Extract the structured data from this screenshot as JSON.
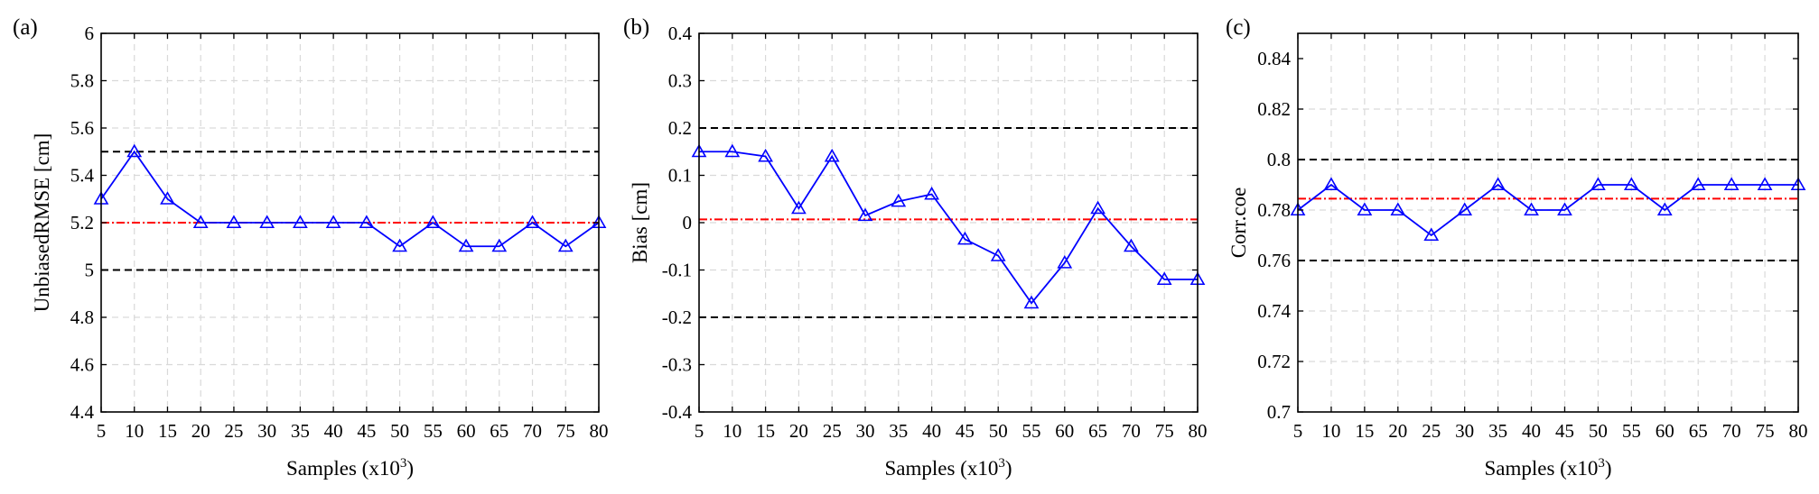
{
  "figure": {
    "layout": "three panels side by side"
  },
  "chart_data": [
    {
      "type": "line",
      "panel_label": "(a)",
      "xlabel": "Samples (x10",
      "xlabel_sup": "3",
      "xlabel_close": ")",
      "ylabel": "UnbiasedRMSE [cm]",
      "xlim": [
        5,
        80
      ],
      "ylim": [
        4.4,
        6
      ],
      "xticks": [
        5,
        10,
        15,
        20,
        25,
        30,
        35,
        40,
        45,
        50,
        55,
        60,
        65,
        70,
        75,
        80
      ],
      "yticks": [
        4.4,
        4.6,
        4.8,
        5,
        5.2,
        5.4,
        5.6,
        5.8,
        6
      ],
      "ytick_labels": [
        "4.4",
        "4.6",
        "4.8",
        "5",
        "5.2",
        "5.4",
        "5.6",
        "5.8",
        "6"
      ],
      "grid": true,
      "series": [
        {
          "x": [
            5,
            10,
            15,
            20,
            25,
            30,
            35,
            40,
            45,
            50,
            55,
            60,
            65,
            70,
            75,
            80
          ],
          "values": [
            5.3,
            5.5,
            5.3,
            5.2,
            5.2,
            5.2,
            5.2,
            5.2,
            5.2,
            5.1,
            5.2,
            5.1,
            5.1,
            5.2,
            5.1,
            5.2
          ],
          "marker": "triangle",
          "color": "#0000ff"
        }
      ],
      "reference_lines": [
        {
          "y": 5.5,
          "style": "dashed",
          "color": "#000000"
        },
        {
          "y": 5.0,
          "style": "dashed",
          "color": "#000000"
        },
        {
          "y": 5.2,
          "style": "dashdot",
          "color": "#ff0000"
        }
      ]
    },
    {
      "type": "line",
      "panel_label": "(b)",
      "xlabel": "Samples (x10",
      "xlabel_sup": "3",
      "xlabel_close": ")",
      "ylabel": "Bias [cm]",
      "xlim": [
        5,
        80
      ],
      "ylim": [
        -0.4,
        0.4
      ],
      "xticks": [
        5,
        10,
        15,
        20,
        25,
        30,
        35,
        40,
        45,
        50,
        55,
        60,
        65,
        70,
        75,
        80
      ],
      "yticks": [
        -0.4,
        -0.3,
        -0.2,
        -0.1,
        0,
        0.1,
        0.2,
        0.3,
        0.4
      ],
      "ytick_labels": [
        "-0.4",
        "-0.3",
        "-0.2",
        "-0.1",
        "0",
        "0.1",
        "0.2",
        "0.3",
        "0.4"
      ],
      "grid": true,
      "series": [
        {
          "x": [
            5,
            10,
            15,
            20,
            25,
            30,
            35,
            40,
            45,
            50,
            55,
            60,
            65,
            70,
            75,
            80
          ],
          "values": [
            0.15,
            0.15,
            0.14,
            0.03,
            0.14,
            0.015,
            0.045,
            0.06,
            -0.035,
            -0.07,
            -0.17,
            -0.085,
            0.03,
            -0.05,
            -0.12,
            -0.12
          ],
          "marker": "triangle",
          "color": "#0000ff"
        }
      ],
      "reference_lines": [
        {
          "y": 0.2,
          "style": "dashed",
          "color": "#000000"
        },
        {
          "y": -0.2,
          "style": "dashed",
          "color": "#000000"
        },
        {
          "y": 0.007,
          "style": "dashdot",
          "color": "#ff0000"
        }
      ]
    },
    {
      "type": "line",
      "panel_label": "(c)",
      "xlabel": "Samples (x10",
      "xlabel_sup": "3",
      "xlabel_close": ")",
      "ylabel": "Corr.coe",
      "xlim": [
        5,
        80
      ],
      "ylim": [
        0.7,
        0.85
      ],
      "xticks": [
        5,
        10,
        15,
        20,
        25,
        30,
        35,
        40,
        45,
        50,
        55,
        60,
        65,
        70,
        75,
        80
      ],
      "yticks": [
        0.7,
        0.72,
        0.74,
        0.76,
        0.78,
        0.8,
        0.82,
        0.84
      ],
      "ytick_labels": [
        "0.7",
        "0.72",
        "0.74",
        "0.76",
        "0.78",
        "0.8",
        "0.82",
        "0.84"
      ],
      "grid": true,
      "series": [
        {
          "x": [
            5,
            10,
            15,
            20,
            25,
            30,
            35,
            40,
            45,
            50,
            55,
            60,
            65,
            70,
            75,
            80
          ],
          "values": [
            0.78,
            0.79,
            0.78,
            0.78,
            0.77,
            0.78,
            0.79,
            0.78,
            0.78,
            0.79,
            0.79,
            0.78,
            0.79,
            0.79,
            0.79,
            0.79
          ],
          "marker": "triangle",
          "color": "#0000ff"
        }
      ],
      "reference_lines": [
        {
          "y": 0.8,
          "style": "dashed",
          "color": "#000000"
        },
        {
          "y": 0.76,
          "style": "dashed",
          "color": "#000000"
        },
        {
          "y": 0.7845,
          "style": "dashdot",
          "color": "#ff0000"
        }
      ]
    }
  ]
}
